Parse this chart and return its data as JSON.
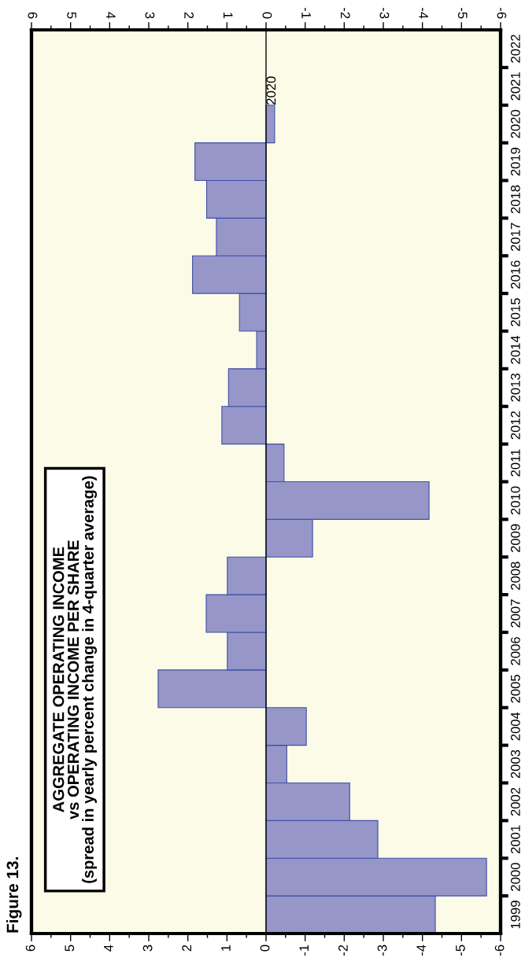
{
  "chart_data": {
    "type": "histogram",
    "orientation": "horizontal",
    "title": "Figure 13.",
    "subtitle": "AGGREGATE OPERATING INCOME\nvs OPERATING INCOME PER SHARE\n(spread in yearly percent change in 4-quarter average)",
    "annotations": [
      {
        "text": "2020",
        "x": 0,
        "y": 2021
      }
    ],
    "bins": [
      1999,
      2000,
      2001,
      2002,
      2003,
      2004,
      2005,
      2006,
      2007,
      2008,
      2009,
      2010,
      2011,
      2012,
      2013,
      2014,
      2015,
      2016,
      2017,
      2018,
      2019,
      2020,
      2021
    ],
    "values": [
      -4.33,
      -5.64,
      -2.86,
      -2.14,
      -0.53,
      -1.03,
      2.76,
      0.99,
      1.53,
      0.99,
      -1.19,
      -4.17,
      -0.46,
      1.13,
      0.96,
      0.24,
      0.68,
      1.88,
      1.27,
      1.52,
      1.82,
      -0.22
    ],
    "color": "#9696c8",
    "xlim": [
      6,
      -6
    ],
    "xticks": [
      6,
      {
        "value": 5.5,
        "label": null
      },
      5,
      {
        "value": 4.5,
        "label": null
      },
      4,
      {
        "value": 3.5,
        "label": null
      },
      3,
      {
        "value": 2.5,
        "label": null
      },
      2,
      {
        "value": 1.5,
        "label": null
      },
      1,
      {
        "value": 0.5,
        "label": null
      },
      0,
      {
        "value": -0.5,
        "label": null
      },
      {
        "value": -1,
        "label": "-1"
      },
      {
        "value": -1.5,
        "label": null
      },
      {
        "value": -2,
        "label": "-2"
      },
      {
        "value": -2.5,
        "label": null
      },
      {
        "value": -3,
        "label": "-3"
      },
      {
        "value": -3.5,
        "label": null
      },
      {
        "value": -4,
        "label": "-4"
      },
      {
        "value": -4.5,
        "label": null
      },
      {
        "value": -5,
        "label": "-5"
      },
      {
        "value": -5.5,
        "label": null
      },
      {
        "value": -6,
        "label": "-6"
      }
    ],
    "x2lim": [
      6,
      -6
    ],
    "x2ticks": [
      6,
      {
        "value": 5.5,
        "label": null
      },
      5,
      {
        "value": 4.5,
        "label": null
      },
      4,
      {
        "value": 3.5,
        "label": null
      },
      3,
      {
        "value": 2.5,
        "label": null
      },
      2,
      {
        "value": 1.5,
        "label": null
      },
      1,
      {
        "value": 0.5,
        "label": null
      },
      0,
      {
        "value": -0.5,
        "label": null
      },
      {
        "value": -1,
        "label": "-1"
      },
      {
        "value": -1.5,
        "label": null
      },
      {
        "value": -2,
        "label": "-2"
      },
      {
        "value": -2.5,
        "label": null
      },
      {
        "value": -3,
        "label": "-3"
      },
      {
        "value": -3.5,
        "label": null
      },
      {
        "value": -4,
        "label": "-4"
      },
      {
        "value": -4.5,
        "label": null
      },
      {
        "value": -5,
        "label": "-5"
      },
      {
        "value": -5.5,
        "label": null
      },
      {
        "value": -6,
        "label": "-6"
      }
    ],
    "ylim": [
      1999,
      2023
    ],
    "yticks": [
      {
        "value": 1999.5,
        "label": "1999"
      },
      {
        "value": 2000,
        "label": null
      },
      {
        "value": 2000.5,
        "label": "2000"
      },
      {
        "value": 2001,
        "label": null
      },
      {
        "value": 2001.5,
        "label": "2001"
      },
      {
        "value": 2002,
        "label": null
      },
      {
        "value": 2002.5,
        "label": "2002"
      },
      {
        "value": 2003,
        "label": null
      },
      {
        "value": 2003.5,
        "label": "2003"
      },
      {
        "value": 2004,
        "label": null
      },
      {
        "value": 2004.5,
        "label": "2004"
      },
      {
        "value": 2005,
        "label": null
      },
      {
        "value": 2005.5,
        "label": "2005"
      },
      {
        "value": 2006,
        "label": null
      },
      {
        "value": 2006.5,
        "label": "2006"
      },
      {
        "value": 2007,
        "label": null
      },
      {
        "value": 2007.5,
        "label": "2007"
      },
      {
        "value": 2008,
        "label": null
      },
      {
        "value": 2008.5,
        "label": "2008"
      },
      {
        "value": 2009,
        "label": null
      },
      {
        "value": 2009.5,
        "label": "2009"
      },
      {
        "value": 2010,
        "label": null
      },
      {
        "value": 2010.5,
        "label": "2010"
      },
      {
        "value": 2011,
        "label": null
      },
      {
        "value": 2011.5,
        "label": "2011"
      },
      {
        "value": 2012,
        "label": null
      },
      {
        "value": 2012.5,
        "label": "2012"
      },
      {
        "value": 2013,
        "label": null
      },
      {
        "value": 2013.5,
        "label": "2013"
      },
      {
        "value": 2014,
        "label": null
      },
      {
        "value": 2014.5,
        "label": "2014"
      },
      {
        "value": 2015,
        "label": null
      },
      {
        "value": 2015.5,
        "label": "2015"
      },
      {
        "value": 2016,
        "label": null
      },
      {
        "value": 2016.5,
        "label": "2016"
      },
      {
        "value": 2017,
        "label": null
      },
      {
        "value": 2017.5,
        "label": "2017"
      },
      {
        "value": 2018,
        "label": null
      },
      {
        "value": 2018.5,
        "label": "2018"
      },
      {
        "value": 2019,
        "label": null
      },
      {
        "value": 2019.5,
        "label": "2019"
      },
      {
        "value": 2020,
        "label": null
      },
      {
        "value": 2020.5,
        "label": "2020"
      },
      {
        "value": 2021,
        "label": null
      },
      {
        "value": 2021.5,
        "label": "2021"
      },
      {
        "value": 2022,
        "label": null
      },
      {
        "value": 2022.5,
        "label": "2022"
      }
    ],
    "ref_lines": [
      {
        "axis": "x",
        "value": 0,
        "color": "#000000"
      }
    ],
    "grid": false,
    "legend": false
  }
}
